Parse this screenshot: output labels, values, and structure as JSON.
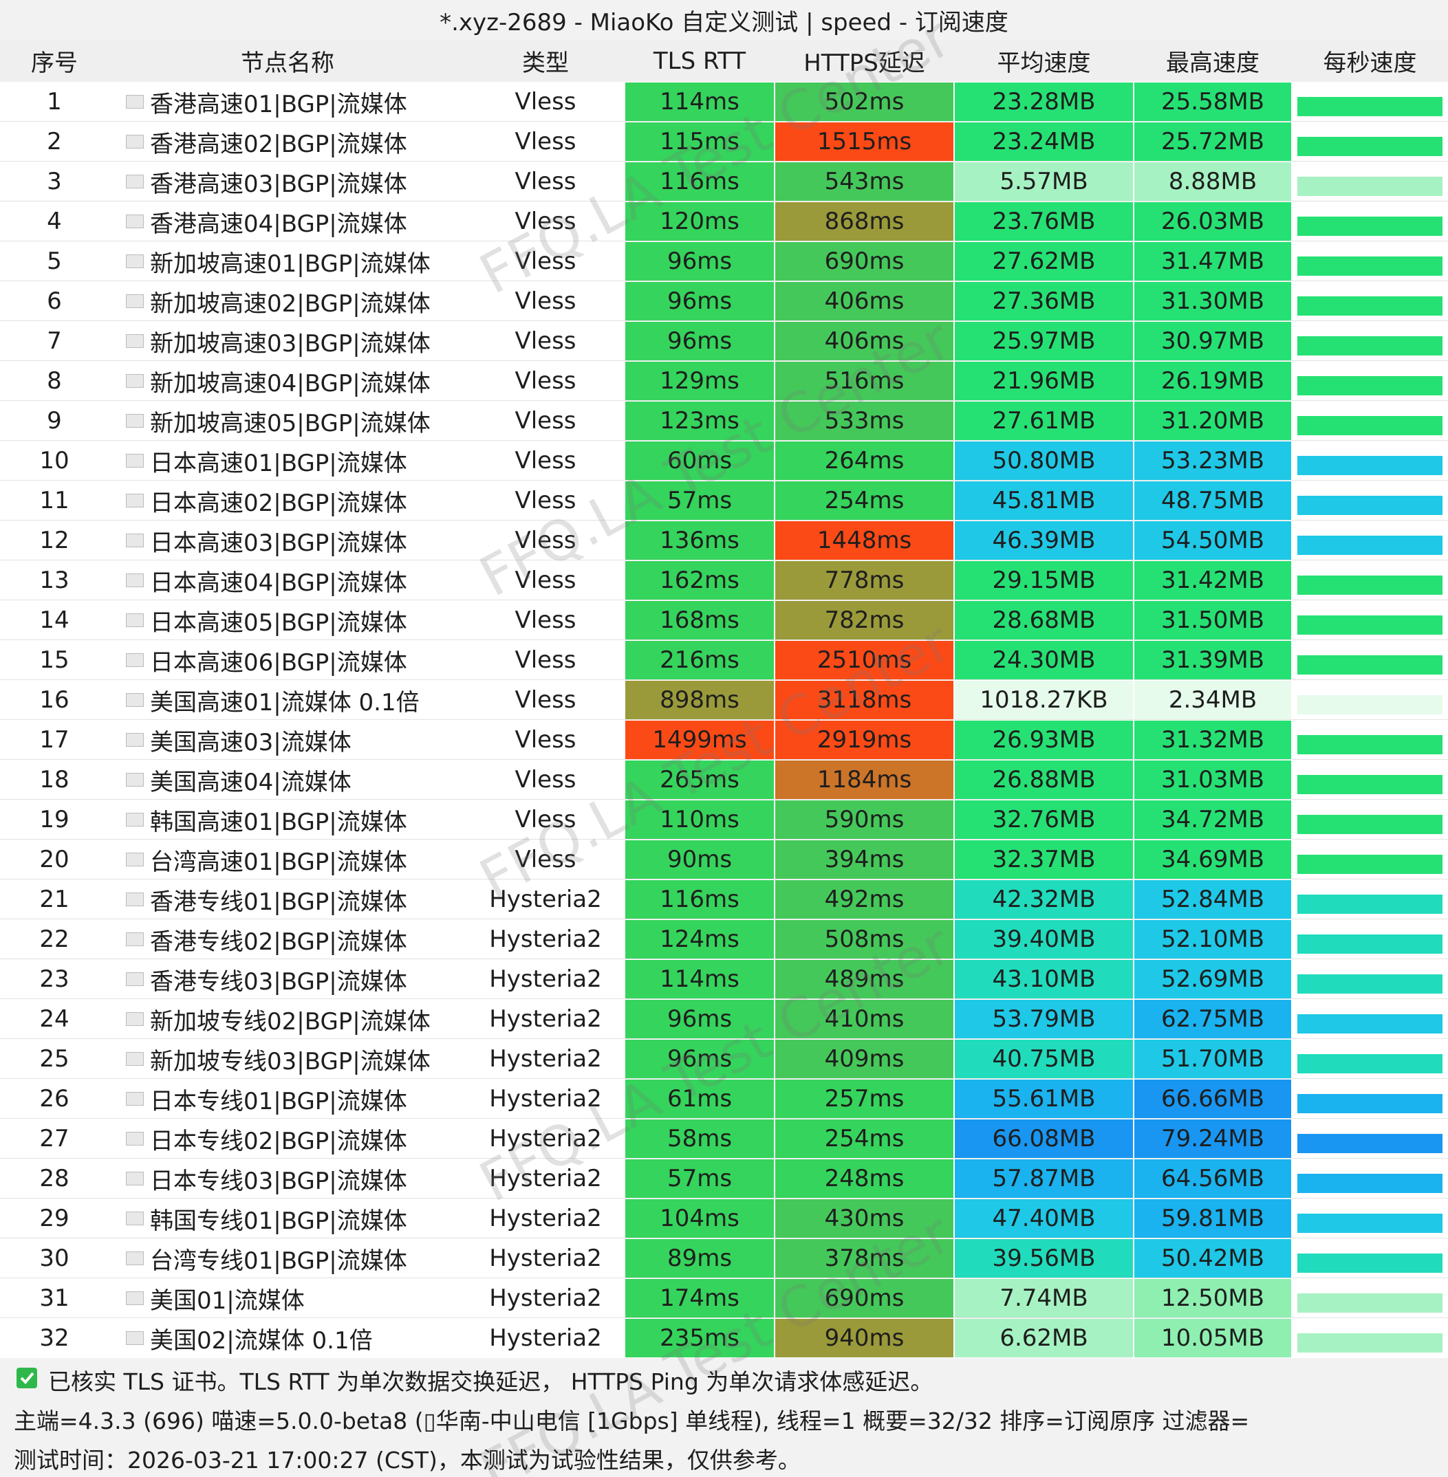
{
  "title": "*.xyz-2689 - MiaoKo 自定义测试 | speed - 订阅速度",
  "watermark": "FFQ.LA Test Center",
  "table": {
    "headers": [
      "序号",
      "节点名称",
      "类型",
      "TLS RTT",
      "HTTPS延迟",
      "平均速度",
      "最高速度",
      "每秒速度"
    ],
    "rows": [
      [
        1,
        "香港高速01|BGP|流媒体",
        "Vless",
        "114ms",
        "502ms",
        "23.28MB",
        "25.58MB"
      ],
      [
        2,
        "香港高速02|BGP|流媒体",
        "Vless",
        "115ms",
        "1515ms",
        "23.24MB",
        "25.72MB"
      ],
      [
        3,
        "香港高速03|BGP|流媒体",
        "Vless",
        "116ms",
        "543ms",
        "5.57MB",
        "8.88MB"
      ],
      [
        4,
        "香港高速04|BGP|流媒体",
        "Vless",
        "120ms",
        "868ms",
        "23.76MB",
        "26.03MB"
      ],
      [
        5,
        "新加坡高速01|BGP|流媒体",
        "Vless",
        "96ms",
        "690ms",
        "27.62MB",
        "31.47MB"
      ],
      [
        6,
        "新加坡高速02|BGP|流媒体",
        "Vless",
        "96ms",
        "406ms",
        "27.36MB",
        "31.30MB"
      ],
      [
        7,
        "新加坡高速03|BGP|流媒体",
        "Vless",
        "96ms",
        "406ms",
        "25.97MB",
        "30.97MB"
      ],
      [
        8,
        "新加坡高速04|BGP|流媒体",
        "Vless",
        "129ms",
        "516ms",
        "21.96MB",
        "26.19MB"
      ],
      [
        9,
        "新加坡高速05|BGP|流媒体",
        "Vless",
        "123ms",
        "533ms",
        "27.61MB",
        "31.20MB"
      ],
      [
        10,
        "日本高速01|BGP|流媒体",
        "Vless",
        "60ms",
        "264ms",
        "50.80MB",
        "53.23MB"
      ],
      [
        11,
        "日本高速02|BGP|流媒体",
        "Vless",
        "57ms",
        "254ms",
        "45.81MB",
        "48.75MB"
      ],
      [
        12,
        "日本高速03|BGP|流媒体",
        "Vless",
        "136ms",
        "1448ms",
        "46.39MB",
        "54.50MB"
      ],
      [
        13,
        "日本高速04|BGP|流媒体",
        "Vless",
        "162ms",
        "778ms",
        "29.15MB",
        "31.42MB"
      ],
      [
        14,
        "日本高速05|BGP|流媒体",
        "Vless",
        "168ms",
        "782ms",
        "28.68MB",
        "31.50MB"
      ],
      [
        15,
        "日本高速06|BGP|流媒体",
        "Vless",
        "216ms",
        "2510ms",
        "24.30MB",
        "31.39MB"
      ],
      [
        16,
        "美国高速01|流媒体 0.1倍",
        "Vless",
        "898ms",
        "3118ms",
        "1018.27KB",
        "2.34MB"
      ],
      [
        17,
        "美国高速03|流媒体",
        "Vless",
        "1499ms",
        "2919ms",
        "26.93MB",
        "31.32MB"
      ],
      [
        18,
        "美国高速04|流媒体",
        "Vless",
        "265ms",
        "1184ms",
        "26.88MB",
        "31.03MB"
      ],
      [
        19,
        "韩国高速01|BGP|流媒体",
        "Vless",
        "110ms",
        "590ms",
        "32.76MB",
        "34.72MB"
      ],
      [
        20,
        "台湾高速01|BGP|流媒体",
        "Vless",
        "90ms",
        "394ms",
        "32.37MB",
        "34.69MB"
      ],
      [
        21,
        "香港专线01|BGP|流媒体",
        "Hysteria2",
        "116ms",
        "492ms",
        "42.32MB",
        "52.84MB"
      ],
      [
        22,
        "香港专线02|BGP|流媒体",
        "Hysteria2",
        "124ms",
        "508ms",
        "39.40MB",
        "52.10MB"
      ],
      [
        23,
        "香港专线03|BGP|流媒体",
        "Hysteria2",
        "114ms",
        "489ms",
        "43.10MB",
        "52.69MB"
      ],
      [
        24,
        "新加坡专线02|BGP|流媒体",
        "Hysteria2",
        "96ms",
        "410ms",
        "53.79MB",
        "62.75MB"
      ],
      [
        25,
        "新加坡专线03|BGP|流媒体",
        "Hysteria2",
        "96ms",
        "409ms",
        "40.75MB",
        "51.70MB"
      ],
      [
        26,
        "日本专线01|BGP|流媒体",
        "Hysteria2",
        "61ms",
        "257ms",
        "55.61MB",
        "66.66MB"
      ],
      [
        27,
        "日本专线02|BGP|流媒体",
        "Hysteria2",
        "58ms",
        "254ms",
        "66.08MB",
        "79.24MB"
      ],
      [
        28,
        "日本专线03|BGP|流媒体",
        "Hysteria2",
        "57ms",
        "248ms",
        "57.87MB",
        "64.56MB"
      ],
      [
        29,
        "韩国专线01|BGP|流媒体",
        "Hysteria2",
        "104ms",
        "430ms",
        "47.40MB",
        "59.81MB"
      ],
      [
        30,
        "台湾专线01|BGP|流媒体",
        "Hysteria2",
        "89ms",
        "378ms",
        "39.56MB",
        "50.42MB"
      ],
      [
        31,
        "美国01|流媒体",
        "Hysteria2",
        "174ms",
        "690ms",
        "7.74MB",
        "12.50MB"
      ],
      [
        32,
        "美国02|流媒体 0.1倍",
        "Hysteria2",
        "235ms",
        "940ms",
        "6.62MB",
        "10.05MB"
      ]
    ]
  },
  "footer": [
    "已核实 TLS 证书。TLS RTT 为单次数据交换延迟， HTTPS Ping 为单次请求体感延迟。",
    "主端=4.3.3 (696) 喵速=5.0.0-beta8 (▯华南-中山电信 [1Gbps] 单线程), 线程=1 概要=32/32 排序=订阅原序 过滤器=",
    "测试时间：2026-03-21 17:00:27 (CST)，本测试为试验性结果，仅供参考。"
  ]
}
